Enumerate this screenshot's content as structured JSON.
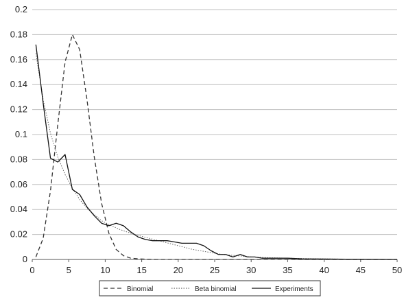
{
  "chart_data": {
    "type": "line",
    "title": "",
    "xlabel": "",
    "ylabel": "",
    "xlim": [
      0,
      50
    ],
    "ylim": [
      0,
      0.2
    ],
    "xticks": [
      0,
      5,
      10,
      15,
      20,
      25,
      30,
      35,
      40,
      45,
      50
    ],
    "yticks": [
      0,
      0.02,
      0.04,
      0.06,
      0.08,
      0.1,
      0.12,
      0.14,
      0.16,
      0.18,
      0.2
    ],
    "xtick_labels": [
      "0",
      "5",
      "10",
      "15",
      "20",
      "25",
      "30",
      "35",
      "40",
      "45",
      "50"
    ],
    "ytick_labels": [
      "0",
      "0.02",
      "0.04",
      "0.06",
      "0.08",
      "0.1",
      "0.12",
      "0.14",
      "0.16",
      "0.18",
      "0.2"
    ],
    "grid": "horizontal",
    "legend_position": "bottom",
    "series": [
      {
        "name": "Binomial",
        "style": "dashed",
        "color": "#333333",
        "x": [
          0.5,
          1.5,
          2.5,
          3.5,
          4.5,
          5.5,
          6.5,
          7.5,
          8.5,
          9.5,
          10.5,
          11.5,
          12.5,
          13.5,
          14.5,
          15.5,
          17,
          20,
          25,
          30,
          40,
          50
        ],
        "y": [
          0.002,
          0.017,
          0.055,
          0.108,
          0.158,
          0.18,
          0.168,
          0.128,
          0.082,
          0.045,
          0.021,
          0.008,
          0.003,
          0.001,
          0.0005,
          0.0002,
          0,
          0,
          0,
          0,
          0,
          0
        ]
      },
      {
        "name": "Beta binomial",
        "style": "dotted",
        "color": "#666666",
        "x": [
          0.5,
          1.5,
          2.5,
          3.5,
          4.5,
          5.5,
          6.5,
          7.5,
          8.5,
          9.5,
          10.5,
          12,
          14,
          16,
          18,
          20,
          22,
          24,
          26,
          28,
          30,
          32,
          35,
          38,
          42,
          46,
          50
        ],
        "y": [
          0.165,
          0.128,
          0.101,
          0.082,
          0.068,
          0.057,
          0.048,
          0.041,
          0.036,
          0.031,
          0.028,
          0.024,
          0.02,
          0.017,
          0.014,
          0.011,
          0.008,
          0.006,
          0.004,
          0.003,
          0.002,
          0.0015,
          0.001,
          0.0006,
          0.0003,
          0.0001,
          0
        ]
      },
      {
        "name": "Experiments",
        "style": "solid",
        "color": "#111111",
        "x": [
          0.5,
          1.5,
          2.5,
          3.5,
          4.5,
          5.5,
          6.5,
          7.5,
          8.5,
          9.5,
          10.5,
          11.5,
          12.5,
          13.5,
          14.5,
          15.5,
          16.5,
          17.5,
          18.5,
          19.5,
          20.5,
          21.5,
          22.5,
          23.5,
          24.5,
          25.5,
          26.5,
          27.5,
          28.5,
          29.5,
          30.5,
          31.5,
          32.5,
          33.5,
          35,
          37,
          40,
          43,
          46,
          50
        ],
        "y": [
          0.172,
          0.125,
          0.081,
          0.078,
          0.084,
          0.056,
          0.052,
          0.042,
          0.035,
          0.029,
          0.027,
          0.029,
          0.027,
          0.022,
          0.018,
          0.016,
          0.015,
          0.015,
          0.015,
          0.014,
          0.013,
          0.013,
          0.013,
          0.011,
          0.007,
          0.004,
          0.004,
          0.002,
          0.004,
          0.002,
          0.002,
          0.001,
          0.001,
          0.001,
          0.001,
          0.0005,
          0.0003,
          0.0002,
          0.0001,
          0
        ]
      }
    ]
  }
}
